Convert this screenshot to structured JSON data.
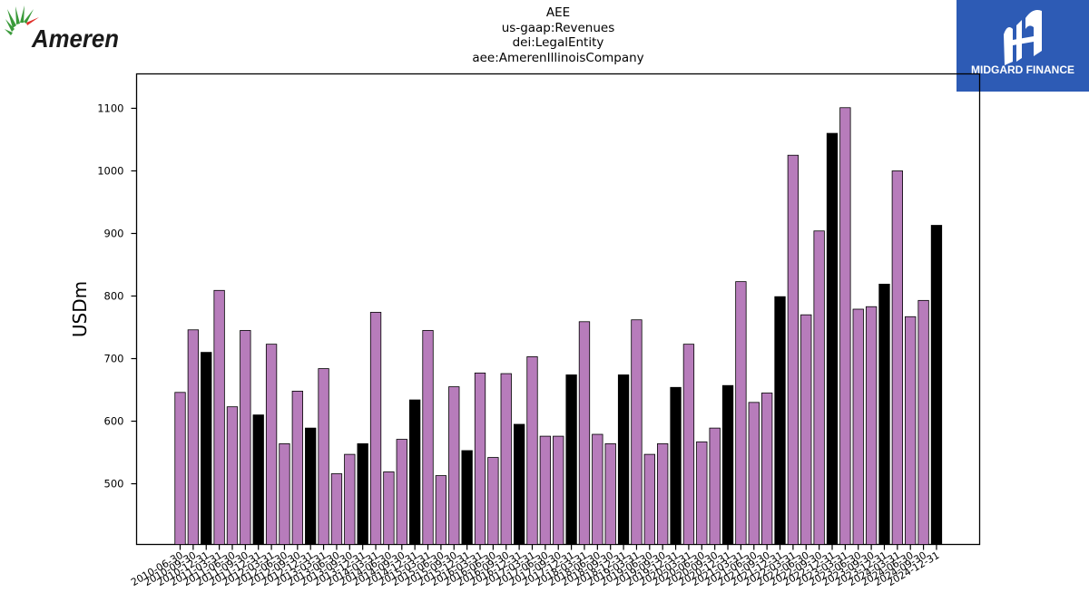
{
  "brand": {
    "left_logo_text": "Ameren",
    "right_logo_text": "MIDGARD FINANCE",
    "left_logo_colors": {
      "text": "#1a1a1a",
      "rays": "#3a9a3a",
      "accent": "#e0302a"
    },
    "right_logo_color": "#2d5bb5"
  },
  "chart_data": {
    "type": "bar",
    "title_lines": [
      "AEE",
      "us-gaap:Revenues",
      "dei:LegalEntity",
      "aee:AmerenIllinoisCompany"
    ],
    "xlabel": "",
    "ylabel": "USDm",
    "ylim": [
      403,
      1155
    ],
    "yticks": [
      500,
      600,
      700,
      800,
      900,
      1000,
      1100
    ],
    "grid": false,
    "colors": {
      "quarter": "#b77cbb",
      "annual": "#000000"
    },
    "categories": [
      "2010-06-30",
      "2010-09-30",
      "2010-12-31",
      "2011-03-31",
      "2011-06-30",
      "2011-09-30",
      "2011-12-31",
      "2012-03-31",
      "2012-06-30",
      "2012-09-30",
      "2012-12-31",
      "2013-03-31",
      "2013-06-30",
      "2013-09-30",
      "2013-12-31",
      "2014-03-31",
      "2014-06-30",
      "2014-09-30",
      "2014-12-31",
      "2015-03-31",
      "2015-06-30",
      "2015-09-30",
      "2015-12-31",
      "2016-03-31",
      "2016-06-30",
      "2016-09-30",
      "2016-12-31",
      "2017-03-31",
      "2017-06-30",
      "2017-09-30",
      "2017-12-31",
      "2018-03-31",
      "2018-06-30",
      "2018-09-30",
      "2018-12-31",
      "2019-03-31",
      "2019-06-30",
      "2019-09-30",
      "2019-12-31",
      "2020-03-31",
      "2020-06-30",
      "2020-09-30",
      "2020-12-31",
      "2021-03-31",
      "2021-06-30",
      "2021-09-30",
      "2021-12-31",
      "2022-03-31",
      "2022-06-30",
      "2022-09-30",
      "2022-12-31",
      "2023-03-31",
      "2023-06-30",
      "2023-09-30",
      "2023-12-31",
      "2024-03-31",
      "2024-06-30",
      "2024-09-30",
      "2024-12-31"
    ],
    "values": [
      646,
      746,
      710,
      809,
      623,
      745,
      610,
      723,
      564,
      648,
      589,
      684,
      516,
      547,
      564,
      774,
      519,
      571,
      634,
      745,
      513,
      655,
      553,
      677,
      542,
      676,
      595,
      703,
      576,
      576,
      674,
      759,
      579,
      564,
      674,
      762,
      547,
      564,
      654,
      723,
      567,
      589,
      657,
      823,
      630,
      645,
      799,
      1025,
      770,
      904,
      1060,
      1101,
      779,
      783,
      819,
      1000,
      767,
      793,
      913
    ],
    "annual": [
      false,
      false,
      true,
      false,
      false,
      false,
      true,
      false,
      false,
      false,
      true,
      false,
      false,
      false,
      true,
      false,
      false,
      false,
      true,
      false,
      false,
      false,
      true,
      false,
      false,
      false,
      true,
      false,
      false,
      false,
      true,
      false,
      false,
      false,
      true,
      false,
      false,
      false,
      true,
      false,
      false,
      false,
      true,
      false,
      false,
      false,
      true,
      false,
      false,
      false,
      true,
      false,
      false,
      false,
      true,
      false,
      false,
      false,
      true
    ]
  }
}
